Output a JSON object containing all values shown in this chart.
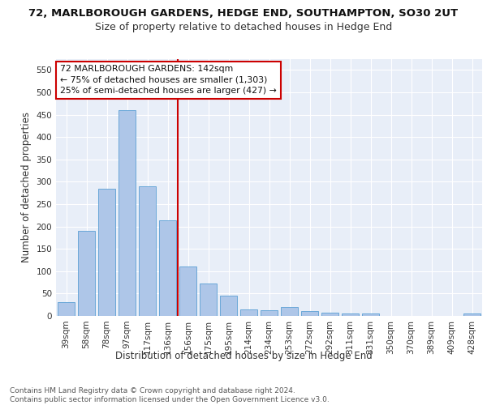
{
  "title1": "72, MARLBOROUGH GARDENS, HEDGE END, SOUTHAMPTON, SO30 2UT",
  "title2": "Size of property relative to detached houses in Hedge End",
  "xlabel": "Distribution of detached houses by size in Hedge End",
  "ylabel": "Number of detached properties",
  "categories": [
    "39sqm",
    "58sqm",
    "78sqm",
    "97sqm",
    "117sqm",
    "136sqm",
    "156sqm",
    "175sqm",
    "195sqm",
    "214sqm",
    "234sqm",
    "253sqm",
    "272sqm",
    "292sqm",
    "311sqm",
    "331sqm",
    "350sqm",
    "370sqm",
    "389sqm",
    "409sqm",
    "428sqm"
  ],
  "values": [
    30,
    190,
    285,
    460,
    290,
    213,
    110,
    72,
    46,
    15,
    13,
    20,
    10,
    7,
    5,
    5,
    0,
    0,
    0,
    0,
    5
  ],
  "bar_color": "#aec6e8",
  "bar_edge_color": "#5a9fd4",
  "vline_x": 5.5,
  "vline_color": "#cc0000",
  "annotation_text": "72 MARLBOROUGH GARDENS: 142sqm\n← 75% of detached houses are smaller (1,303)\n25% of semi-detached houses are larger (427) →",
  "annotation_box_color": "#ffffff",
  "annotation_box_edge_color": "#cc0000",
  "ylim": [
    0,
    575
  ],
  "yticks": [
    0,
    50,
    100,
    150,
    200,
    250,
    300,
    350,
    400,
    450,
    500,
    550
  ],
  "background_color": "#e8eef8",
  "footer_text": "Contains HM Land Registry data © Crown copyright and database right 2024.\nContains public sector information licensed under the Open Government Licence v3.0.",
  "title1_fontsize": 9.5,
  "title2_fontsize": 9,
  "xlabel_fontsize": 8.5,
  "ylabel_fontsize": 8.5,
  "tick_fontsize": 7.5,
  "footer_fontsize": 6.5
}
